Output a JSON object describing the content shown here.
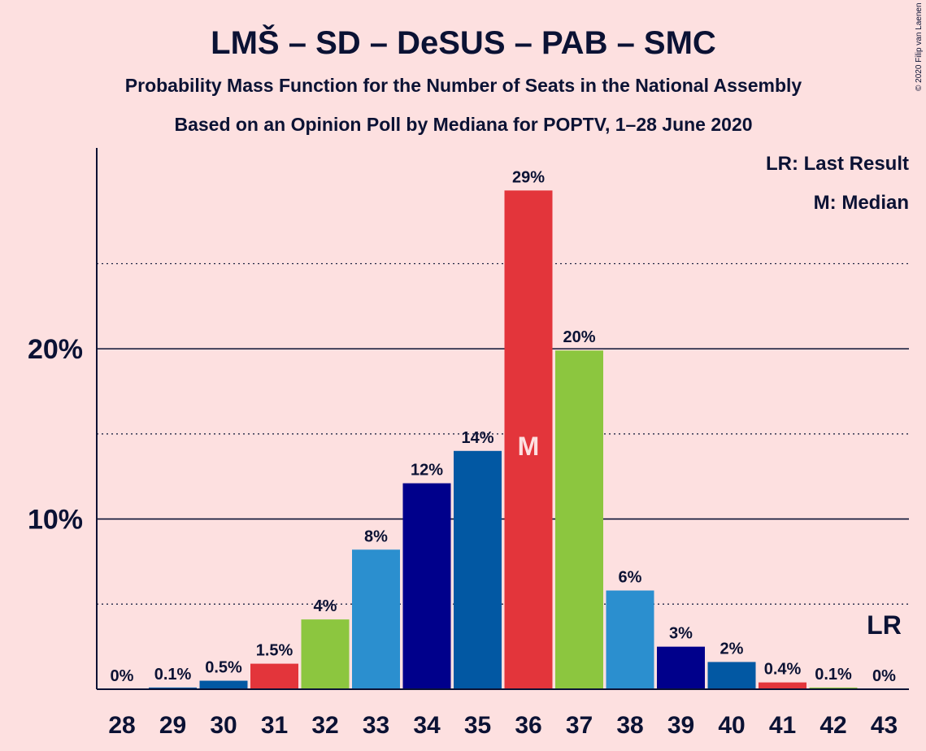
{
  "title": "LMŠ – SD – DeSUS – PAB – SMC",
  "subtitle1": "Probability Mass Function for the Number of Seats in the National Assembly",
  "subtitle2": "Based on an Opinion Poll by Mediana for POPTV, 1–28 June 2020",
  "legend": {
    "last_result": "LR: Last Result",
    "median": "M: Median"
  },
  "copyright": "© 2020 Filip van Laenen",
  "median_marker": "M",
  "last_result_marker": "LR",
  "chart_data": {
    "type": "bar",
    "title": "LMŠ – SD – DeSUS – PAB – SMC",
    "xlabel": "",
    "ylabel": "",
    "categories": [
      "28",
      "29",
      "30",
      "31",
      "32",
      "33",
      "34",
      "35",
      "36",
      "37",
      "38",
      "39",
      "40",
      "41",
      "42",
      "43"
    ],
    "values": [
      0,
      0.1,
      0.5,
      1.5,
      4.1,
      8.2,
      12.1,
      14.0,
      29.3,
      19.9,
      5.8,
      2.5,
      1.6,
      0.4,
      0.1,
      0
    ],
    "labels": [
      "0%",
      "0.1%",
      "0.5%",
      "1.5%",
      "4%",
      "8%",
      "12%",
      "14%",
      "29%",
      "20%",
      "6%",
      "3%",
      "2%",
      "0.4%",
      "0.1%",
      "0%"
    ],
    "colors": [
      "#2b8fcf",
      "#0258a3",
      "#0258a3",
      "#e3353b",
      "#8cc63f",
      "#2b8fcf",
      "#00008b",
      "#0258a3",
      "#e3353b",
      "#8cc63f",
      "#2b8fcf",
      "#00008b",
      "#0258a3",
      "#e3353b",
      "#8cc63f",
      "#2b8fcf"
    ],
    "ylim": [
      0,
      31.8
    ],
    "yticks": [
      10,
      20
    ],
    "ytick_labels": [
      "10%",
      "20%"
    ],
    "minor_gridlines": [
      5,
      15,
      25
    ],
    "median_category": "36",
    "last_result_category": "43",
    "grid": true,
    "legend_position": "top-right"
  }
}
